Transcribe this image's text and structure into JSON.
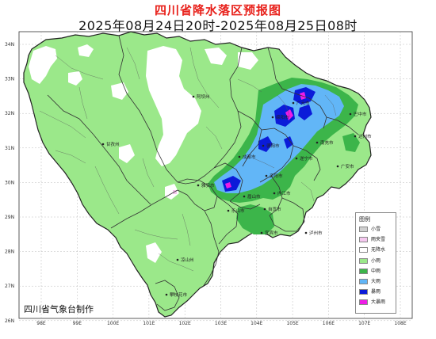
{
  "title": "四川省降水落区预报图",
  "subtitle": "2025年08月24日20时-2025年08月25日08时",
  "organization": "四川省气象台制作",
  "lon_labels": [
    "98E",
    "99E",
    "100E",
    "101E",
    "102E",
    "103E",
    "104E",
    "105E",
    "106E",
    "107E",
    "108E"
  ],
  "lat_labels": [
    "34N",
    "33N",
    "32N",
    "31N",
    "30N",
    "29N",
    "28N",
    "27N",
    "26N"
  ],
  "cities": [
    {
      "name": "阿坝州",
      "id": "aba"
    },
    {
      "name": "甘孜州",
      "id": "ganzi"
    },
    {
      "name": "凉山州",
      "id": "liangshan"
    },
    {
      "name": "攀枝花市",
      "id": "panzhihua"
    },
    {
      "name": "雅安市",
      "id": "yaan"
    },
    {
      "name": "乐山市",
      "id": "leshan"
    },
    {
      "name": "眉山市",
      "id": "meishan"
    },
    {
      "name": "成都市",
      "id": "chengdu"
    },
    {
      "name": "德阳市",
      "id": "deyang"
    },
    {
      "name": "绵阳市",
      "id": "mianyang"
    },
    {
      "name": "广元市",
      "id": "guangyuan"
    },
    {
      "name": "巴中市",
      "id": "bazhong"
    },
    {
      "name": "达州市",
      "id": "dazhou"
    },
    {
      "name": "南充市",
      "id": "nanchong"
    },
    {
      "name": "遂宁市",
      "id": "suining"
    },
    {
      "name": "广安市",
      "id": "guangan"
    },
    {
      "name": "资阳市",
      "id": "ziyang"
    },
    {
      "name": "内江市",
      "id": "neijiang"
    },
    {
      "name": "自贡市",
      "id": "zigong"
    },
    {
      "name": "宜宾市",
      "id": "yibin"
    },
    {
      "name": "泸州市",
      "id": "luzhou"
    }
  ],
  "legend": {
    "title": "图例",
    "items": [
      {
        "label": "小雪",
        "color": "#d0d0d0"
      },
      {
        "label": "雨夹雪",
        "color": "#f5c8ef"
      },
      {
        "label": "无降水",
        "color": "#ffffff"
      },
      {
        "label": "小雨",
        "color": "#9be88a"
      },
      {
        "label": "中雨",
        "color": "#3cb54a"
      },
      {
        "label": "大雨",
        "color": "#62b6f7"
      },
      {
        "label": "暴雨",
        "color": "#0b1bd9"
      },
      {
        "label": "大暴雨",
        "color": "#ee1ce6"
      }
    ]
  }
}
